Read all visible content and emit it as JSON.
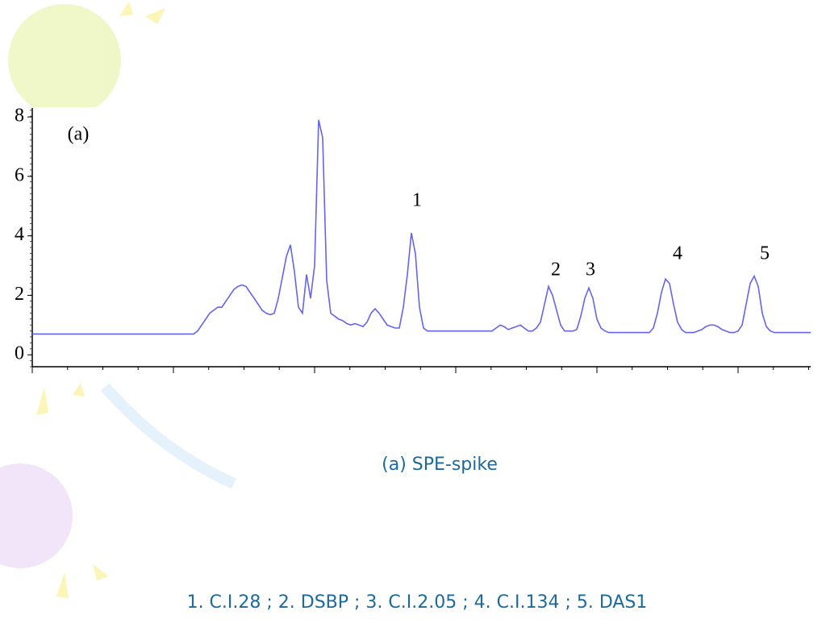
{
  "chart_data": {
    "type": "line",
    "annotations": [
      "(a)",
      "1",
      "2",
      "3",
      "4",
      "5"
    ],
    "color": "#6464ee",
    "ylim": [
      -0.4,
      8.3
    ],
    "yticks": [
      0,
      2,
      4,
      6,
      8
    ],
    "values": [
      0.7,
      0.7,
      0.7,
      0.7,
      0.7,
      0.7,
      0.7,
      0.7,
      0.7,
      0.7,
      0.7,
      0.7,
      0.7,
      0.7,
      0.7,
      0.7,
      0.7,
      0.7,
      0.7,
      0.7,
      0.7,
      0.7,
      0.7,
      0.7,
      0.7,
      0.7,
      0.7,
      0.7,
      0.7,
      0.7,
      0.7,
      0.7,
      0.7,
      0.7,
      0.7,
      0.7,
      0.7,
      0.7,
      0.7,
      0.7,
      0.7,
      0.8,
      1.0,
      1.2,
      1.4,
      1.5,
      1.6,
      1.6,
      1.8,
      2.0,
      2.2,
      2.3,
      2.35,
      2.3,
      2.1,
      1.9,
      1.7,
      1.5,
      1.4,
      1.35,
      1.4,
      1.9,
      2.6,
      3.3,
      3.7,
      2.8,
      1.6,
      1.4,
      2.7,
      1.9,
      3.0,
      7.9,
      7.3,
      2.5,
      1.4,
      1.3,
      1.2,
      1.15,
      1.05,
      1.0,
      1.05,
      1.0,
      0.95,
      1.1,
      1.4,
      1.55,
      1.4,
      1.2,
      1.0,
      0.95,
      0.9,
      0.9,
      1.6,
      2.7,
      4.1,
      3.4,
      1.6,
      0.9,
      0.8,
      0.8,
      0.8,
      0.8,
      0.8,
      0.8,
      0.8,
      0.8,
      0.8,
      0.8,
      0.8,
      0.8,
      0.8,
      0.8,
      0.8,
      0.8,
      0.8,
      0.9,
      1.0,
      0.95,
      0.85,
      0.9,
      0.95,
      1.0,
      0.9,
      0.8,
      0.8,
      0.9,
      1.1,
      1.7,
      2.3,
      2.0,
      1.5,
      1.0,
      0.8,
      0.8,
      0.8,
      0.85,
      1.3,
      1.9,
      2.25,
      1.9,
      1.2,
      0.9,
      0.8,
      0.75,
      0.75,
      0.75,
      0.75,
      0.75,
      0.75,
      0.75,
      0.75,
      0.75,
      0.75,
      0.75,
      0.9,
      1.4,
      2.1,
      2.55,
      2.4,
      1.7,
      1.1,
      0.85,
      0.75,
      0.75,
      0.75,
      0.8,
      0.85,
      0.95,
      1.0,
      1.0,
      0.95,
      0.85,
      0.8,
      0.75,
      0.75,
      0.8,
      1.0,
      1.7,
      2.4,
      2.65,
      2.3,
      1.4,
      0.95,
      0.8,
      0.75,
      0.75,
      0.75,
      0.75,
      0.75,
      0.75,
      0.75,
      0.75,
      0.75,
      0.75
    ]
  },
  "caption": "(a) SPE-spike",
  "footnote": "1. C.I.28 ; 2. DSBP ; 3. C.I.2.05 ; 4. C.I.134 ; 5. DAS1"
}
